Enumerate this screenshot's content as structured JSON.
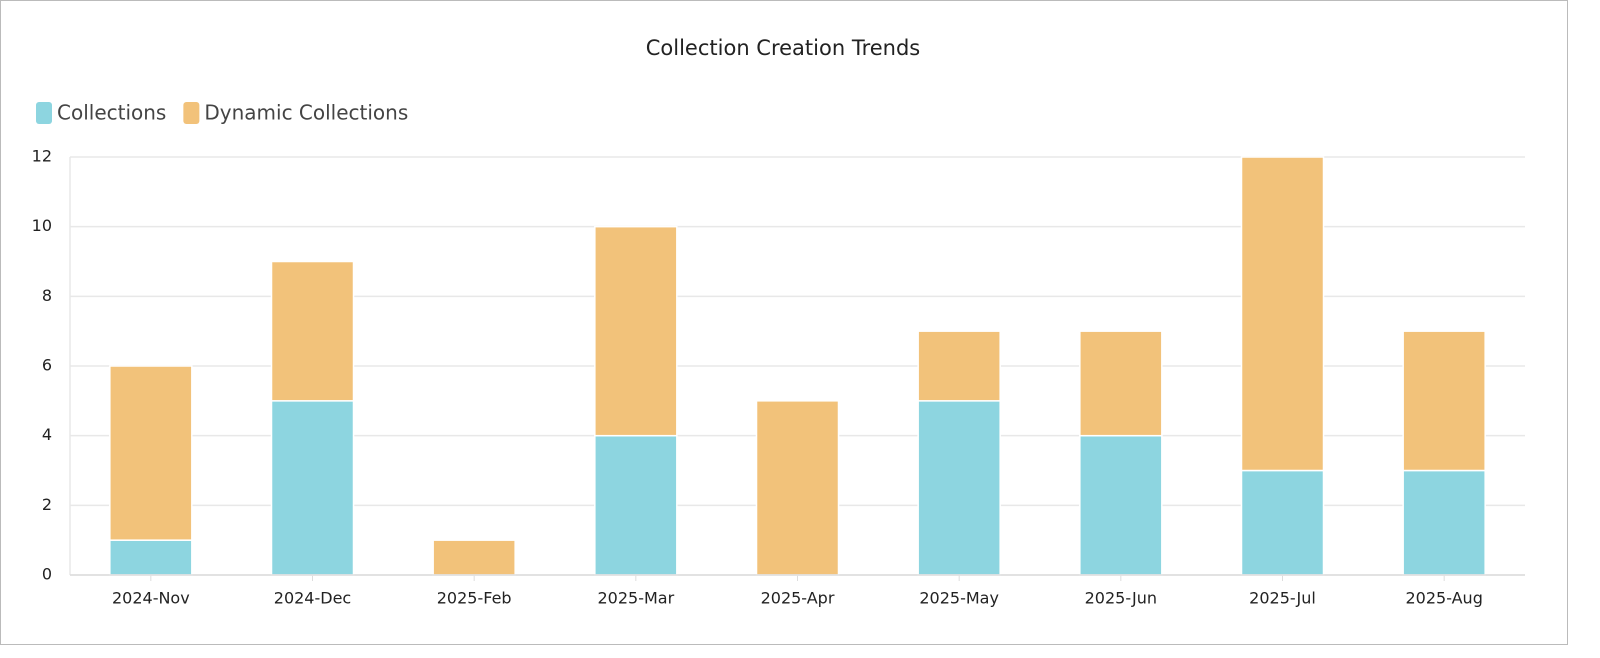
{
  "chart_data": {
    "type": "bar",
    "stacked": true,
    "title": "Collection Creation Trends",
    "categories": [
      "2024-Nov",
      "2024-Dec",
      "2025-Feb",
      "2025-Mar",
      "2025-Apr",
      "2025-May",
      "2025-Jun",
      "2025-Jul",
      "2025-Aug"
    ],
    "series": [
      {
        "name": "Collections",
        "color": "#8dd5e0",
        "values": [
          1,
          5,
          0,
          4,
          0,
          5,
          4,
          3,
          3
        ]
      },
      {
        "name": "Dynamic Collections",
        "color": "#f2c27a",
        "values": [
          5,
          4,
          1,
          6,
          5,
          2,
          3,
          9,
          4
        ]
      }
    ],
    "ylim": [
      0,
      12
    ],
    "yticks": [
      0,
      2,
      4,
      6,
      8,
      10,
      12
    ],
    "grid": true,
    "legend": "top-left"
  }
}
